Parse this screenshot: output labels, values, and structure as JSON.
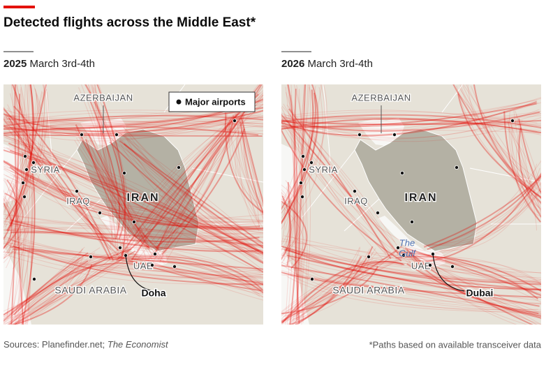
{
  "header": {
    "title": "Detected flights across the Middle East*"
  },
  "panels": [
    {
      "year": "2025",
      "date": "March 3rd-4th",
      "labels": [
        "AZERBAIJAN",
        "SYRIA",
        "IRAQ",
        "IRAN",
        "SAUDI ARABIA",
        "UAE"
      ],
      "legend": "Major airports",
      "annotation": "Doha"
    },
    {
      "year": "2026",
      "date": "March 3rd-4th",
      "labels": [
        "AZERBAIJAN",
        "SYRIA",
        "IRAQ",
        "IRAN",
        "SAUDI ARABIA",
        "UAE"
      ],
      "gulf_label": [
        "The",
        "Gulf"
      ],
      "annotation": "Dubai"
    }
  ],
  "footer": {
    "source": "Sources: Planefinder.net;",
    "source_italic": "The Economist",
    "note": "*Paths based on available transceiver data"
  }
}
